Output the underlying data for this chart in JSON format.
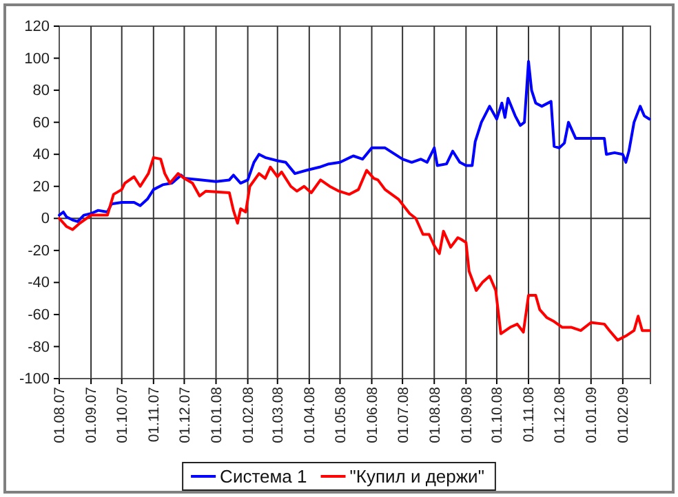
{
  "chart_data": {
    "type": "line",
    "xlim": [
      "2007-08-01",
      "2009-02-28"
    ],
    "ylim": [
      -100,
      120
    ],
    "yticks": [
      -100,
      -80,
      -60,
      -40,
      -20,
      0,
      20,
      40,
      60,
      80,
      100,
      120
    ],
    "xticks": [
      {
        "value": "2007-08-01",
        "label": "01.08.07"
      },
      {
        "value": "2007-09-01",
        "label": "01.09.07"
      },
      {
        "value": "2007-10-01",
        "label": "01.10.07"
      },
      {
        "value": "2007-11-01",
        "label": "01.11.07"
      },
      {
        "value": "2007-12-01",
        "label": "01.12.07"
      },
      {
        "value": "2008-01-01",
        "label": "01.01.08"
      },
      {
        "value": "2008-02-01",
        "label": "01.02.08"
      },
      {
        "value": "2008-03-01",
        "label": "01.03.08"
      },
      {
        "value": "2008-04-01",
        "label": "01.04.08"
      },
      {
        "value": "2008-05-01",
        "label": "01.05.08"
      },
      {
        "value": "2008-06-01",
        "label": "01.06.08"
      },
      {
        "value": "2008-07-01",
        "label": "01.07.08"
      },
      {
        "value": "2008-08-01",
        "label": "01.08.08"
      },
      {
        "value": "2008-09-01",
        "label": "01.09.08"
      },
      {
        "value": "2008-10-01",
        "label": "01.10.08"
      },
      {
        "value": "2008-11-01",
        "label": "01.11.08"
      },
      {
        "value": "2008-12-01",
        "label": "01.12.08"
      },
      {
        "value": "2009-01-01",
        "label": "01.01.09"
      },
      {
        "value": "2009-02-01",
        "label": "01.02.09"
      }
    ],
    "grid": "x",
    "ref_lines": [
      {
        "axis": "y",
        "value": 0
      }
    ],
    "legend": "bottom",
    "marker": "none",
    "line_style": "solid",
    "series": [
      {
        "name": "Система 1",
        "color": "#0000ff",
        "x": [
          "2007-08-01",
          "2007-08-05",
          "2007-08-08",
          "2007-08-14",
          "2007-08-19",
          "2007-08-25",
          "2007-09-01",
          "2007-09-08",
          "2007-09-17",
          "2007-09-21",
          "2007-10-01",
          "2007-10-13",
          "2007-10-19",
          "2007-10-26",
          "2007-11-01",
          "2007-11-10",
          "2007-11-19",
          "2007-11-28",
          "2007-12-01",
          "2007-12-18",
          "2008-01-01",
          "2008-01-14",
          "2008-01-18",
          "2008-01-25",
          "2008-02-01",
          "2008-02-07",
          "2008-02-12",
          "2008-02-18",
          "2008-03-01",
          "2008-03-09",
          "2008-03-18",
          "2008-03-29",
          "2008-04-11",
          "2008-04-20",
          "2008-05-01",
          "2008-05-14",
          "2008-05-23",
          "2008-06-01",
          "2008-06-14",
          "2008-07-01",
          "2008-07-10",
          "2008-07-19",
          "2008-07-25",
          "2008-08-01",
          "2008-08-04",
          "2008-08-13",
          "2008-08-19",
          "2008-08-26",
          "2008-09-01",
          "2008-09-07",
          "2008-09-10",
          "2008-09-16",
          "2008-09-24",
          "2008-10-01",
          "2008-10-06",
          "2008-10-09",
          "2008-10-12",
          "2008-10-19",
          "2008-10-24",
          "2008-10-28",
          "2008-11-01",
          "2008-11-04",
          "2008-11-08",
          "2008-11-14",
          "2008-11-23",
          "2008-11-26",
          "2008-12-01",
          "2008-12-06",
          "2008-12-10",
          "2008-12-17",
          "2008-12-28",
          "2009-01-01",
          "2009-01-14",
          "2009-01-16",
          "2009-01-24",
          "2009-02-01",
          "2009-02-04",
          "2009-02-07",
          "2009-02-12",
          "2009-02-18",
          "2009-02-22",
          "2009-02-27"
        ],
        "values": [
          2,
          4,
          1,
          -1,
          -2,
          2,
          3,
          5,
          4,
          9,
          10,
          10,
          8,
          12,
          18,
          21,
          22,
          27,
          25,
          24,
          23,
          24,
          27,
          22,
          24,
          35,
          40,
          38,
          36,
          35,
          28,
          30,
          32,
          34,
          35,
          39,
          37,
          44,
          44,
          37,
          35,
          37,
          35,
          44,
          33,
          34,
          42,
          35,
          33,
          33,
          48,
          60,
          70,
          62,
          72,
          63,
          75,
          64,
          58,
          60,
          98,
          80,
          72,
          70,
          73,
          45,
          44,
          47,
          60,
          50,
          50,
          50,
          50,
          40,
          41,
          40,
          35,
          42,
          60,
          70,
          64,
          62
        ]
      },
      {
        "name": "\"Купил и держи\"",
        "color": "#ff0000",
        "x": [
          "2007-08-01",
          "2007-08-08",
          "2007-08-14",
          "2007-08-21",
          "2007-09-01",
          "2007-09-17",
          "2007-09-23",
          "2007-10-01",
          "2007-10-04",
          "2007-10-13",
          "2007-10-19",
          "2007-10-27",
          "2007-11-01",
          "2007-11-08",
          "2007-11-12",
          "2007-11-17",
          "2007-11-25",
          "2007-12-01",
          "2007-12-09",
          "2007-12-16",
          "2007-12-22",
          "2008-01-14",
          "2008-01-18",
          "2008-01-22",
          "2008-01-25",
          "2008-01-30",
          "2008-02-03",
          "2008-02-12",
          "2008-02-18",
          "2008-02-23",
          "2008-03-01",
          "2008-03-05",
          "2008-03-14",
          "2008-03-20",
          "2008-03-27",
          "2008-04-03",
          "2008-04-12",
          "2008-04-21",
          "2008-04-30",
          "2008-05-10",
          "2008-05-19",
          "2008-05-27",
          "2008-06-03",
          "2008-06-07",
          "2008-06-14",
          "2008-06-27",
          "2008-07-08",
          "2008-07-14",
          "2008-07-21",
          "2008-07-27",
          "2008-08-01",
          "2008-08-06",
          "2008-08-10",
          "2008-08-17",
          "2008-08-24",
          "2008-08-27",
          "2008-09-01",
          "2008-09-04",
          "2008-09-11",
          "2008-09-17",
          "2008-09-24",
          "2008-09-30",
          "2008-10-05",
          "2008-10-14",
          "2008-10-21",
          "2008-10-27",
          "2008-11-01",
          "2008-11-08",
          "2008-11-12",
          "2008-11-19",
          "2008-11-25",
          "2008-12-04",
          "2008-12-13",
          "2008-12-22",
          "2009-01-01",
          "2009-01-14",
          "2009-01-19",
          "2009-01-27",
          "2009-02-05",
          "2009-02-12",
          "2009-02-16",
          "2009-02-20",
          "2009-02-27"
        ],
        "values": [
          0,
          -5,
          -7,
          -3,
          2,
          2,
          15,
          18,
          22,
          26,
          20,
          28,
          38,
          37,
          28,
          22,
          28,
          25,
          22,
          14,
          17,
          16,
          5,
          -3,
          6,
          4,
          20,
          28,
          25,
          32,
          26,
          29,
          20,
          17,
          20,
          16,
          24,
          20,
          17,
          15,
          18,
          30,
          25,
          24,
          18,
          12,
          3,
          0,
          -10,
          -10,
          -17,
          -22,
          -8,
          -18,
          -12,
          -13,
          -15,
          -33,
          -45,
          -40,
          -36,
          -45,
          -72,
          -68,
          -66,
          -71,
          -48,
          -48,
          -57,
          -62,
          -64,
          -68,
          -68,
          -70,
          -65,
          -66,
          -70,
          -76,
          -73,
          -70,
          -61,
          -70,
          -70
        ]
      }
    ]
  }
}
